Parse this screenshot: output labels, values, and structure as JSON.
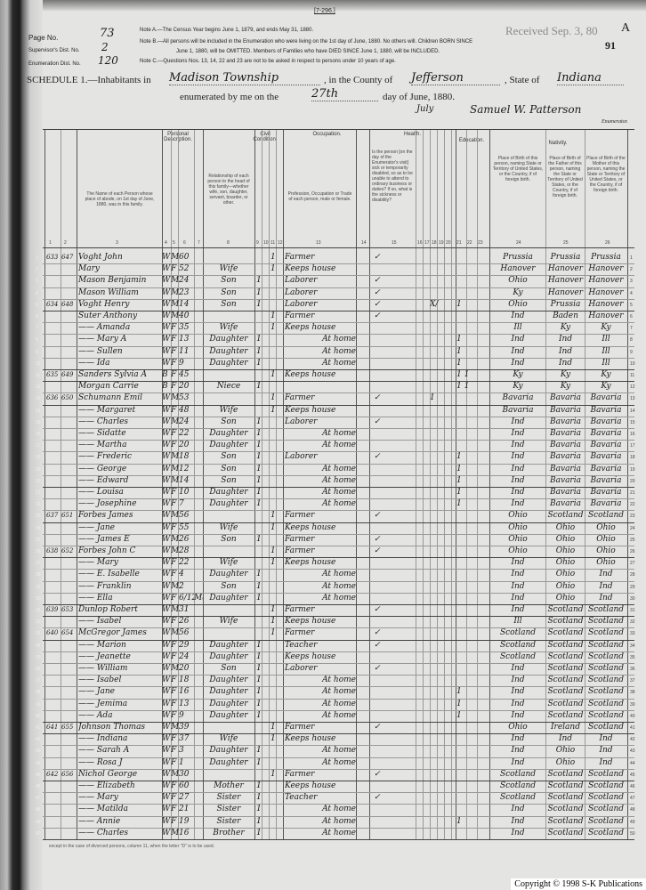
{
  "form_id": "[7-296.]",
  "received_stamp": "Received Sep. 3, 80",
  "sheet_letter": "A",
  "sheet_number": "91",
  "page_no": {
    "label": "Page No.",
    "value": "73"
  },
  "supervisor_dist": {
    "label": "Supervisor's Dist. No.",
    "value": "2"
  },
  "enumeration_dist": {
    "label": "Enumeration Dist. No.",
    "value": "120"
  },
  "notes": [
    "Note A.—The Census Year begins June 1, 1879, and ends May 31, 1880.",
    "Note B.—All persons will be included in the Enumeration who were living on the 1st day of June, 1880. No others will. Children BORN SINCE",
    "June 1, 1880, will be OMITTED. Members of Families who have DIED SINCE June 1, 1880, will be INCLUDED.",
    "Note C.—Questions Nos. 13, 14, 22 and 23 are not to be asked in respect to persons under 10 years of age."
  ],
  "schedule": {
    "title": "SCHEDULE 1.—Inhabitants in",
    "place": "Madison Township",
    "county_label": ", in the County of",
    "county": "Jefferson",
    "state_label": ", State of",
    "state": "Indiana",
    "enumerated_label": "enumerated by me on the",
    "day": "27th",
    "day_of_label": "day of June, 1880.",
    "month_correction": "July",
    "enumerator_signature": "Samuel W. Patterson",
    "enumerator_label": "Enumerator."
  },
  "column_groups": {
    "personal": "Personal Description.",
    "civil": "Civil Condition.",
    "occupation": "Occupation.",
    "health": "Health.",
    "education": "Education.",
    "nativity": "Nativity."
  },
  "column_headers": {
    "name": "The Name of each Person whose place of abode, on 1st day of June, 1880, was in this family.",
    "relationship": "Relationship of each person to the head of this family—whether wife, son, daughter, servant, boarder, or other.",
    "occupation": "Profession, Occupation or Trade of each person, male or female.",
    "health": "Is the person [on the day of the Enumerator's visit] sick or temporarily disabled, so as to be unable to attend to ordinary business or duties? If so, what is the sickness or disability?",
    "birth_person": "Place of Birth of this person, naming State or Territory of United States, or the Country, if of foreign birth.",
    "birth_father": "Place of Birth of the Father of this person, naming the State or Territory of United States, or the Country, if of foreign birth.",
    "birth_mother": "Place of Birth of the Mother of this person, naming the State or Territory of United States, or the Country, if of foreign birth."
  },
  "column_numbers": [
    "1",
    "2",
    "3",
    "4",
    "5",
    "6",
    "7",
    "8",
    "9",
    "10",
    "11",
    "12",
    "13",
    "14",
    "15",
    "16",
    "17",
    "18",
    "19",
    "20",
    "21",
    "22",
    "23",
    "24",
    "25",
    "26"
  ],
  "rows": [
    {
      "dw": "633",
      "fam": "647",
      "name": "Voght John",
      "color": "W",
      "sex": "M",
      "age": "60",
      "rel": "",
      "civ": "1",
      "occ": "Farmer",
      "chk": "✓",
      "x": "",
      "edu": "",
      "bp": "Prussia",
      "bf": "Prussia",
      "bm": "Prussia"
    },
    {
      "dw": "",
      "fam": "",
      "name": "      Mary",
      "color": "W",
      "sex": "F",
      "age": "52",
      "rel": "Wife",
      "civ": "1",
      "occ": "Keeps house",
      "chk": "",
      "x": "",
      "edu": "",
      "bp": "Hanover",
      "bf": "Hanover",
      "bm": "Hanover"
    },
    {
      "dw": "",
      "fam": "",
      "name": "Mason Benjamin",
      "color": "W",
      "sex": "M",
      "age": "24",
      "rel": "Son",
      "civ": "1",
      "occ": "Laborer",
      "chk": "✓",
      "x": "",
      "edu": "",
      "bp": "Ohio",
      "bf": "Hanover",
      "bm": "Hanover"
    },
    {
      "dw": "",
      "fam": "",
      "name": "Mason William",
      "color": "W",
      "sex": "M",
      "age": "23",
      "rel": "Son",
      "civ": "1",
      "occ": "Laborer",
      "chk": "✓",
      "x": "",
      "edu": "",
      "bp": "Ky",
      "bf": "Hanover",
      "bm": "Hanover"
    },
    {
      "dw": "634",
      "fam": "648",
      "name": "Voght Henry",
      "color": "W",
      "sex": "M",
      "age": "14",
      "rel": "Son",
      "civ": "1",
      "occ": "Laborer",
      "chk": "✓",
      "x": "X/",
      "edu": "1",
      "bp": "Ohio",
      "bf": "Prussia",
      "bm": "Hanover"
    },
    {
      "dw": "",
      "fam": "",
      "name": "Suter Anthony",
      "color": "W",
      "sex": "M",
      "age": "40",
      "rel": "",
      "civ": "1",
      "occ": "Farmer",
      "chk": "✓",
      "x": "",
      "edu": "",
      "bp": "Ind",
      "bf": "Baden",
      "bm": "Hanover"
    },
    {
      "dw": "",
      "fam": "",
      "name": "—— Amanda",
      "color": "W",
      "sex": "F",
      "age": "35",
      "rel": "Wife",
      "civ": "1",
      "occ": "Keeps house",
      "chk": "",
      "x": "",
      "edu": "",
      "bp": "Ill",
      "bf": "Ky",
      "bm": "Ky"
    },
    {
      "dw": "",
      "fam": "",
      "name": "—— Mary A",
      "color": "W",
      "sex": "F",
      "age": "13",
      "rel": "Daughter",
      "civ": "1",
      "occ": "At home",
      "chk": "",
      "x": "",
      "edu": "1",
      "bp": "Ind",
      "bf": "Ind",
      "bm": "Ill"
    },
    {
      "dw": "",
      "fam": "",
      "name": "—— Sullen",
      "color": "W",
      "sex": "F",
      "age": "11",
      "rel": "Daughter",
      "civ": "1",
      "occ": "At home",
      "chk": "",
      "x": "",
      "edu": "1",
      "bp": "Ind",
      "bf": "Ind",
      "bm": "Ill"
    },
    {
      "dw": "",
      "fam": "",
      "name": "—— Ida",
      "color": "W",
      "sex": "F",
      "age": "9",
      "rel": "Daughter",
      "civ": "1",
      "occ": "At home",
      "chk": "",
      "x": "",
      "edu": "1",
      "bp": "Ind",
      "bf": "Ind",
      "bm": "Ill"
    },
    {
      "dw": "635",
      "fam": "649",
      "name": "Sanders Sylvia A",
      "color": "B",
      "sex": "F",
      "age": "45",
      "rel": "",
      "civ": "1",
      "occ": "Keeps house",
      "chk": "",
      "x": "",
      "edu": "1 1",
      "bp": "Ky",
      "bf": "Ky",
      "bm": "Ky"
    },
    {
      "dw": "",
      "fam": "",
      "name": "Morgan Carrie",
      "color": "B",
      "sex": "F",
      "age": "20",
      "rel": "Niece",
      "civ": "1",
      "occ": "",
      "chk": "",
      "x": "",
      "edu": "1 1",
      "bp": "Ky",
      "bf": "Ky",
      "bm": "Ky"
    },
    {
      "dw": "636",
      "fam": "650",
      "name": "Schumann Emil",
      "color": "W",
      "sex": "M",
      "age": "53",
      "rel": "",
      "civ": "1",
      "occ": "Farmer",
      "chk": "✓",
      "x": "1",
      "edu": "",
      "bp": "Bavaria",
      "bf": "Bavaria",
      "bm": "Bavaria"
    },
    {
      "dw": "",
      "fam": "",
      "name": "—— Margaret",
      "color": "W",
      "sex": "F",
      "age": "48",
      "rel": "Wife",
      "civ": "1",
      "occ": "Keeps house",
      "chk": "",
      "x": "",
      "edu": "",
      "bp": "Bavaria",
      "bf": "Bavaria",
      "bm": "Bavaria"
    },
    {
      "dw": "",
      "fam": "",
      "name": "—— Charles",
      "color": "W",
      "sex": "M",
      "age": "24",
      "rel": "Son",
      "civ": "1",
      "occ": "Laborer",
      "chk": "✓",
      "x": "",
      "edu": "",
      "bp": "Ind",
      "bf": "Bavaria",
      "bm": "Bavaria"
    },
    {
      "dw": "",
      "fam": "",
      "name": "—— Sidatte",
      "color": "W",
      "sex": "F",
      "age": "22",
      "rel": "Daughter",
      "civ": "1",
      "occ": "At home",
      "chk": "",
      "x": "",
      "edu": "",
      "bp": "Ind",
      "bf": "Bavaria",
      "bm": "Bavaria"
    },
    {
      "dw": "",
      "fam": "",
      "name": "—— Martha",
      "color": "W",
      "sex": "F",
      "age": "20",
      "rel": "Daughter",
      "civ": "1",
      "occ": "At home",
      "chk": "",
      "x": "",
      "edu": "",
      "bp": "Ind",
      "bf": "Bavaria",
      "bm": "Bavaria"
    },
    {
      "dw": "",
      "fam": "",
      "name": "—— Frederic",
      "color": "W",
      "sex": "M",
      "age": "18",
      "rel": "Son",
      "civ": "1",
      "occ": "Laborer",
      "chk": "✓",
      "x": "",
      "edu": "1",
      "bp": "Ind",
      "bf": "Bavaria",
      "bm": "Bavaria"
    },
    {
      "dw": "",
      "fam": "",
      "name": "—— George",
      "color": "W",
      "sex": "M",
      "age": "12",
      "rel": "Son",
      "civ": "1",
      "occ": "At home",
      "chk": "",
      "x": "",
      "edu": "1",
      "bp": "Ind",
      "bf": "Bavaria",
      "bm": "Bavaria"
    },
    {
      "dw": "",
      "fam": "",
      "name": "—— Edward",
      "color": "W",
      "sex": "M",
      "age": "14",
      "rel": "Son",
      "civ": "1",
      "occ": "At home",
      "chk": "",
      "x": "",
      "edu": "1",
      "bp": "Ind",
      "bf": "Bavaria",
      "bm": "Bavaria"
    },
    {
      "dw": "",
      "fam": "",
      "name": "—— Louisa",
      "color": "W",
      "sex": "F",
      "age": "10",
      "rel": "Daughter",
      "civ": "1",
      "occ": "At home",
      "chk": "",
      "x": "",
      "edu": "1",
      "bp": "Ind",
      "bf": "Bavaria",
      "bm": "Bavaria"
    },
    {
      "dw": "",
      "fam": "",
      "name": "—— Josephine",
      "color": "W",
      "sex": "F",
      "age": "7",
      "rel": "Daughter",
      "civ": "1",
      "occ": "At home",
      "chk": "",
      "x": "",
      "edu": "1",
      "bp": "Ind",
      "bf": "Bavaria",
      "bm": "Bavaria"
    },
    {
      "dw": "637",
      "fam": "651",
      "name": "Forbes James",
      "color": "W",
      "sex": "M",
      "age": "56",
      "rel": "",
      "civ": "1",
      "occ": "Farmer",
      "chk": "✓",
      "x": "",
      "edu": "",
      "bp": "Ohio",
      "bf": "Scotland",
      "bm": "Scotland"
    },
    {
      "dw": "",
      "fam": "",
      "name": "—— Jane",
      "color": "W",
      "sex": "F",
      "age": "55",
      "rel": "Wife",
      "civ": "1",
      "occ": "Keeps house",
      "chk": "",
      "x": "",
      "edu": "",
      "bp": "Ohio",
      "bf": "Ohio",
      "bm": "Ohio"
    },
    {
      "dw": "",
      "fam": "",
      "name": "—— James E",
      "color": "W",
      "sex": "M",
      "age": "26",
      "rel": "Son",
      "civ": "1",
      "occ": "Farmer",
      "chk": "✓",
      "x": "",
      "edu": "",
      "bp": "Ohio",
      "bf": "Ohio",
      "bm": "Ohio"
    },
    {
      "dw": "638",
      "fam": "652",
      "name": "Forbes John C",
      "color": "W",
      "sex": "M",
      "age": "28",
      "rel": "",
      "civ": "1",
      "occ": "Farmer",
      "chk": "✓",
      "x": "",
      "edu": "",
      "bp": "Ohio",
      "bf": "Ohio",
      "bm": "Ohio"
    },
    {
      "dw": "",
      "fam": "",
      "name": "—— Mary",
      "color": "W",
      "sex": "F",
      "age": "22",
      "rel": "Wife",
      "civ": "1",
      "occ": "Keeps house",
      "chk": "",
      "x": "",
      "edu": "",
      "bp": "Ind",
      "bf": "Ohio",
      "bm": "Ohio"
    },
    {
      "dw": "",
      "fam": "",
      "name": "—— E. Isabelle",
      "color": "W",
      "sex": "F",
      "age": "4",
      "rel": "Daughter",
      "civ": "1",
      "occ": "At home",
      "chk": "",
      "x": "",
      "edu": "",
      "bp": "Ind",
      "bf": "Ohio",
      "bm": "Ind"
    },
    {
      "dw": "",
      "fam": "",
      "name": "—— Franklin",
      "color": "W",
      "sex": "M",
      "age": "2",
      "rel": "Son",
      "civ": "1",
      "occ": "At home",
      "chk": "",
      "x": "",
      "edu": "",
      "bp": "Ind",
      "bf": "Ohio",
      "bm": "Ind"
    },
    {
      "dw": "",
      "fam": "",
      "name": "—— Ella",
      "color": "W",
      "sex": "F",
      "age": "6/12",
      "month": "Mar",
      "rel": "Daughter",
      "civ": "1",
      "occ": "At home",
      "chk": "",
      "x": "",
      "edu": "",
      "bp": "Ind",
      "bf": "Ohio",
      "bm": "Ind"
    },
    {
      "dw": "639",
      "fam": "653",
      "name": "Dunlop Robert",
      "color": "W",
      "sex": "M",
      "age": "31",
      "rel": "",
      "civ": "1",
      "occ": "Farmer",
      "chk": "✓",
      "x": "",
      "edu": "",
      "bp": "Ind",
      "bf": "Scotland",
      "bm": "Scotland"
    },
    {
      "dw": "",
      "fam": "",
      "name": "—— Isabel",
      "color": "W",
      "sex": "F",
      "age": "26",
      "rel": "Wife",
      "civ": "1",
      "occ": "Keeps house",
      "chk": "",
      "x": "",
      "edu": "",
      "bp": "Ill",
      "bf": "Scotland",
      "bm": "Scotland"
    },
    {
      "dw": "640",
      "fam": "654",
      "name": "McGregor James",
      "color": "W",
      "sex": "M",
      "age": "56",
      "rel": "",
      "civ": "1",
      "occ": "Farmer",
      "chk": "✓",
      "x": "",
      "edu": "",
      "bp": "Scotland",
      "bf": "Scotland",
      "bm": "Scotland"
    },
    {
      "dw": "",
      "fam": "",
      "name": "—— Marion",
      "color": "W",
      "sex": "F",
      "age": "29",
      "rel": "Daughter",
      "civ": "1",
      "occ": "Teacher",
      "chk": "✓",
      "x": "",
      "edu": "",
      "bp": "Scotland",
      "bf": "Scotland",
      "bm": "Scotland"
    },
    {
      "dw": "",
      "fam": "",
      "name": "—— Jeanette",
      "color": "W",
      "sex": "F",
      "age": "24",
      "rel": "Daughter",
      "civ": "1",
      "occ": "Keeps house",
      "chk": "",
      "x": "",
      "edu": "",
      "bp": "Scotland",
      "bf": "Scotland",
      "bm": "Scotland"
    },
    {
      "dw": "",
      "fam": "",
      "name": "—— William",
      "color": "W",
      "sex": "M",
      "age": "20",
      "rel": "Son",
      "civ": "1",
      "occ": "Laborer",
      "chk": "✓",
      "x": "",
      "edu": "",
      "bp": "Ind",
      "bf": "Scotland",
      "bm": "Scotland"
    },
    {
      "dw": "",
      "fam": "",
      "name": "—— Isabel",
      "color": "W",
      "sex": "F",
      "age": "18",
      "rel": "Daughter",
      "civ": "1",
      "occ": "At home",
      "chk": "",
      "x": "",
      "edu": "",
      "bp": "Ind",
      "bf": "Scotland",
      "bm": "Scotland"
    },
    {
      "dw": "",
      "fam": "",
      "name": "—— Jane",
      "color": "W",
      "sex": "F",
      "age": "16",
      "rel": "Daughter",
      "civ": "1",
      "occ": "At home",
      "chk": "",
      "x": "",
      "edu": "1",
      "bp": "Ind",
      "bf": "Scotland",
      "bm": "Scotland"
    },
    {
      "dw": "",
      "fam": "",
      "name": "—— Jemima",
      "color": "W",
      "sex": "F",
      "age": "13",
      "rel": "Daughter",
      "civ": "1",
      "occ": "At home",
      "chk": "",
      "x": "",
      "edu": "1",
      "bp": "Ind",
      "bf": "Scotland",
      "bm": "Scotland"
    },
    {
      "dw": "",
      "fam": "",
      "name": "—— Ada",
      "color": "W",
      "sex": "F",
      "age": "9",
      "rel": "Daughter",
      "civ": "1",
      "occ": "At home",
      "chk": "",
      "x": "",
      "edu": "1",
      "bp": "Ind",
      "bf": "Scotland",
      "bm": "Scotland"
    },
    {
      "dw": "641",
      "fam": "655",
      "name": "Johnson Thomas",
      "color": "W",
      "sex": "M",
      "age": "39",
      "rel": "",
      "civ": "1",
      "occ": "Farmer",
      "chk": "✓",
      "x": "",
      "edu": "",
      "bp": "Ohio",
      "bf": "Ireland",
      "bm": "Scotland"
    },
    {
      "dw": "",
      "fam": "",
      "name": "—— Indiana",
      "color": "W",
      "sex": "F",
      "age": "37",
      "rel": "Wife",
      "civ": "1",
      "occ": "Keeps house",
      "chk": "",
      "x": "",
      "edu": "",
      "bp": "Ind",
      "bf": "Ind",
      "bm": "Ind"
    },
    {
      "dw": "",
      "fam": "",
      "name": "—— Sarah A",
      "color": "W",
      "sex": "F",
      "age": "3",
      "rel": "Daughter",
      "civ": "1",
      "occ": "At home",
      "chk": "",
      "x": "",
      "edu": "",
      "bp": "Ind",
      "bf": "Ohio",
      "bm": "Ind"
    },
    {
      "dw": "",
      "fam": "",
      "name": "—— Rosa J",
      "color": "W",
      "sex": "F",
      "age": "1",
      "rel": "Daughter",
      "civ": "1",
      "occ": "At home",
      "chk": "",
      "x": "",
      "edu": "",
      "bp": "Ind",
      "bf": "Ohio",
      "bm": "Ind"
    },
    {
      "dw": "642",
      "fam": "656",
      "name": "Nichol George",
      "color": "W",
      "sex": "M",
      "age": "30",
      "rel": "",
      "civ": "1",
      "occ": "Farmer",
      "chk": "✓",
      "x": "",
      "edu": "",
      "bp": "Scotland",
      "bf": "Scotland",
      "bm": "Scotland"
    },
    {
      "dw": "",
      "fam": "",
      "name": "—— Elizabeth",
      "color": "W",
      "sex": "F",
      "age": "60",
      "rel": "Mother",
      "civ": "1",
      "occ": "Keeps house",
      "chk": "",
      "x": "",
      "edu": "",
      "bp": "Scotland",
      "bf": "Scotland",
      "bm": "Scotland"
    },
    {
      "dw": "",
      "fam": "",
      "name": "—— Mary",
      "color": "W",
      "sex": "F",
      "age": "27",
      "rel": "Sister",
      "civ": "1",
      "occ": "Teacher",
      "chk": "✓",
      "x": "",
      "edu": "",
      "bp": "Scotland",
      "bf": "Scotland",
      "bm": "Scotland"
    },
    {
      "dw": "",
      "fam": "",
      "name": "—— Matilda",
      "color": "W",
      "sex": "F",
      "age": "21",
      "rel": "Sister",
      "civ": "1",
      "occ": "At home",
      "chk": "",
      "x": "",
      "edu": "",
      "bp": "Ind",
      "bf": "Scotland",
      "bm": "Scotland"
    },
    {
      "dw": "",
      "fam": "",
      "name": "—— Annie",
      "color": "W",
      "sex": "F",
      "age": "19",
      "rel": "Sister",
      "civ": "1",
      "occ": "At home",
      "chk": "",
      "x": "",
      "edu": "1",
      "bp": "Ind",
      "bf": "Scotland",
      "bm": "Scotland"
    },
    {
      "dw": "",
      "fam": "",
      "name": "—— Charles",
      "color": "W",
      "sex": "M",
      "age": "16",
      "rel": "Brother",
      "civ": "1",
      "occ": "At home",
      "chk": "",
      "x": "",
      "edu": "",
      "bp": "Ind",
      "bf": "Scotland",
      "bm": "Scotland"
    }
  ],
  "footer_note": "except in the case of divorced persons, column 11, when the letter \"D\" is to be used.",
  "copyright": "Copyright © 1998 S-K Publications"
}
